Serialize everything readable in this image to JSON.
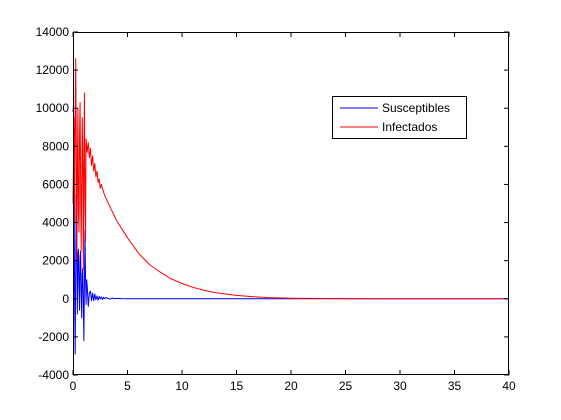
{
  "chart_data": {
    "type": "line",
    "title": "",
    "xlabel": "",
    "ylabel": "",
    "xlim": [
      0,
      40
    ],
    "ylim": [
      -4000,
      14000
    ],
    "xticks": [
      0,
      5,
      10,
      15,
      20,
      25,
      30,
      35,
      40
    ],
    "yticks": [
      -4000,
      -2000,
      0,
      2000,
      4000,
      6000,
      8000,
      10000,
      12000,
      14000
    ],
    "grid": false,
    "legend_position": "upper-right",
    "series": [
      {
        "name": "Susceptibles",
        "color": "#0000ff",
        "x": [
          0,
          0.05,
          0.1,
          0.15,
          0.2,
          0.25,
          0.3,
          0.35,
          0.4,
          0.45,
          0.5,
          0.55,
          0.6,
          0.65,
          0.7,
          0.75,
          0.8,
          0.85,
          0.9,
          0.95,
          1.0,
          1.05,
          1.1,
          1.15,
          1.2,
          1.25,
          1.3,
          1.4,
          1.5,
          1.6,
          1.7,
          1.8,
          1.9,
          2.0,
          2.1,
          2.2,
          2.3,
          2.4,
          2.5,
          2.6,
          2.7,
          2.8,
          2.9,
          3.0,
          3.2,
          3.4,
          3.6,
          3.8,
          4.0,
          4.5,
          5,
          6,
          8,
          10,
          15,
          20,
          25,
          30,
          35,
          40
        ],
        "values": [
          9800,
          10200,
          6000,
          -200,
          -2900,
          1500,
          5500,
          2500,
          -800,
          2300,
          2600,
          500,
          -600,
          2200,
          2500,
          200,
          -1000,
          1300,
          1600,
          -300,
          -2200,
          900,
          3600,
          1200,
          -300,
          1000,
          700,
          -400,
          300,
          400,
          -100,
          300,
          -100,
          250,
          -50,
          150,
          -80,
          120,
          0,
          100,
          -40,
          80,
          0,
          60,
          30,
          -20,
          40,
          0,
          20,
          5,
          0,
          0,
          0,
          0,
          0,
          0,
          0,
          0,
          0,
          0
        ]
      },
      {
        "name": "Infectados",
        "color": "#ff0000",
        "x": [
          0,
          0.05,
          0.1,
          0.15,
          0.2,
          0.25,
          0.3,
          0.35,
          0.4,
          0.45,
          0.5,
          0.55,
          0.6,
          0.65,
          0.7,
          0.75,
          0.8,
          0.85,
          0.9,
          0.95,
          1.0,
          1.05,
          1.1,
          1.15,
          1.2,
          1.3,
          1.4,
          1.5,
          1.6,
          1.7,
          1.8,
          1.9,
          2.0,
          2.1,
          2.2,
          2.3,
          2.4,
          2.5,
          2.6,
          2.8,
          3.0,
          3.5,
          4,
          5,
          6,
          7,
          8,
          9,
          10,
          11,
          12,
          13,
          14,
          15,
          16,
          17,
          18,
          20,
          25,
          30,
          35,
          40
        ],
        "values": [
          5000,
          7500,
          9500,
          4000,
          9000,
          12600,
          8000,
          2000,
          7000,
          10000,
          4500,
          3500,
          8500,
          10300,
          6000,
          2500,
          6000,
          9500,
          7000,
          1500,
          7500,
          10800,
          5000,
          3000,
          8400,
          7700,
          8200,
          7400,
          7900,
          7000,
          7500,
          6700,
          7100,
          6400,
          6700,
          6100,
          6300,
          5800,
          6000,
          5600,
          5300,
          4700,
          4100,
          3200,
          2400,
          1800,
          1400,
          1050,
          800,
          600,
          450,
          330,
          250,
          180,
          130,
          90,
          60,
          30,
          5,
          0,
          0,
          0
        ]
      }
    ]
  }
}
